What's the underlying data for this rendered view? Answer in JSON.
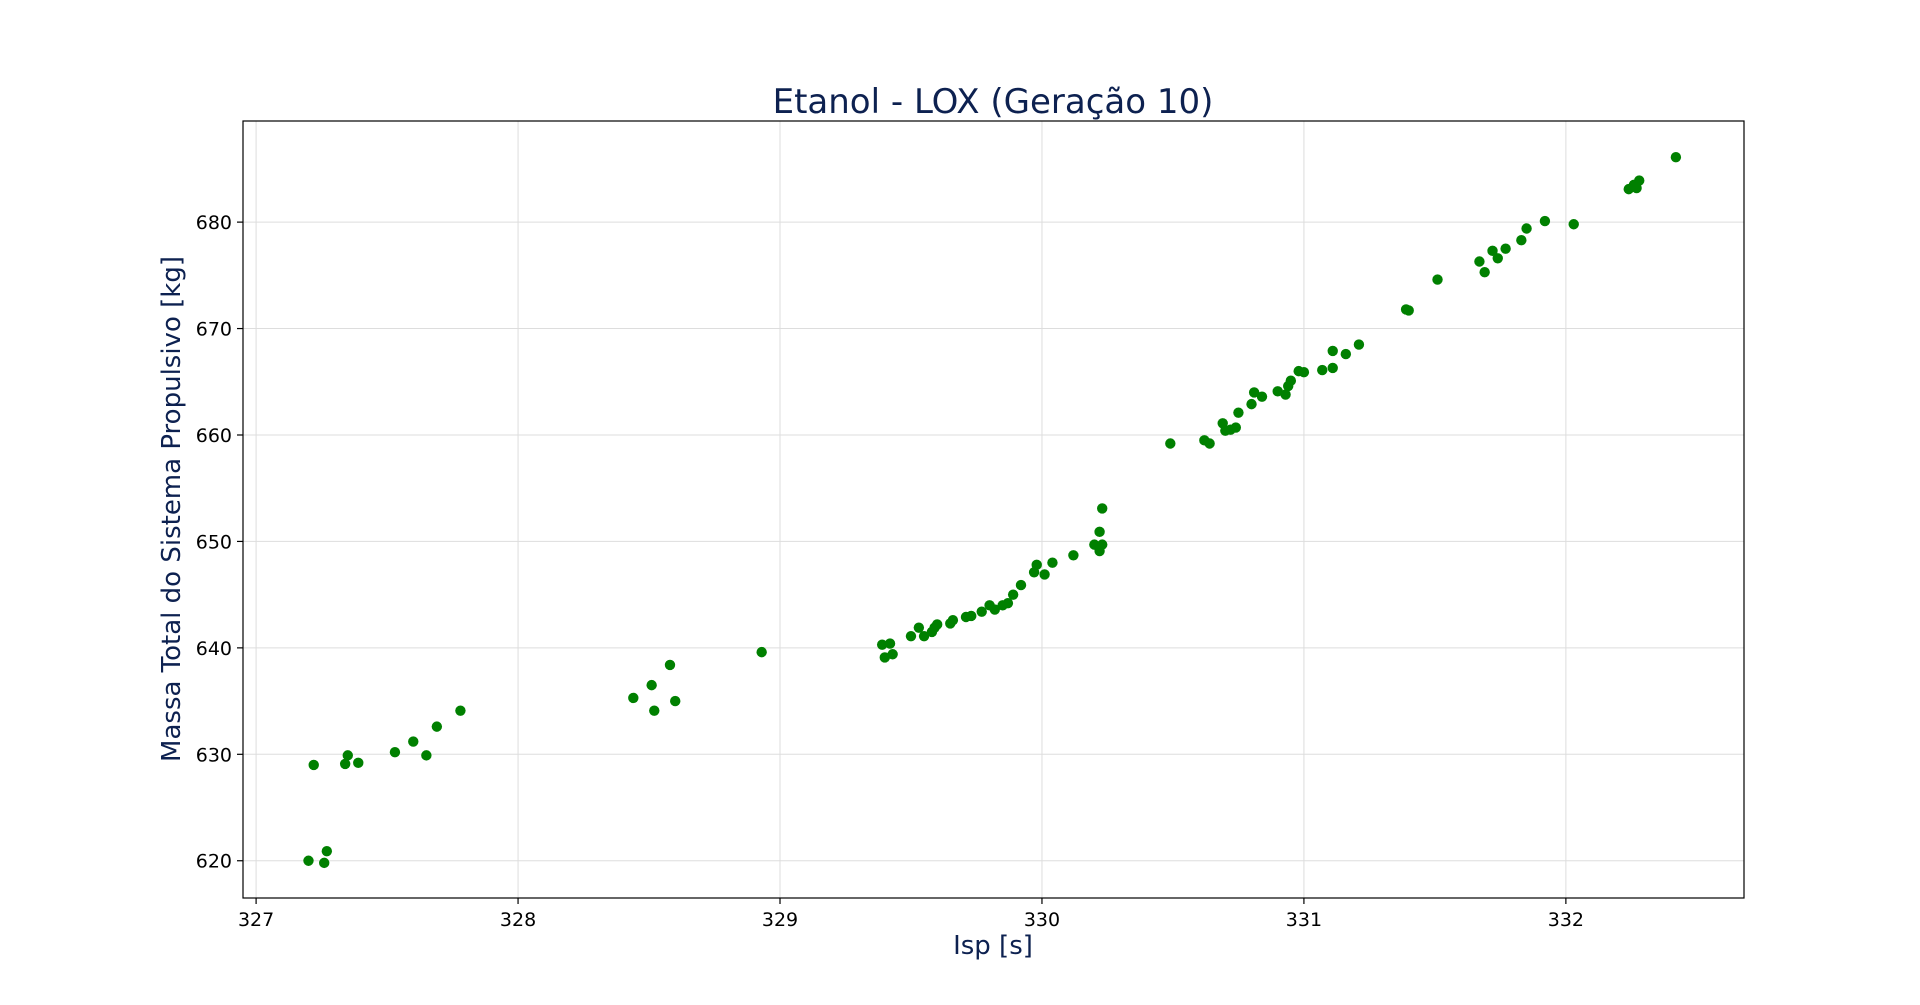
{
  "chart_data": {
    "type": "scatter",
    "title": "Etanol - LOX (Geração 10)",
    "xlabel": "Isp [s]",
    "ylabel": "Massa Total do Sistema Propulsivo [kg]",
    "xlim": [
      326.95,
      332.68
    ],
    "ylim": [
      616.5,
      689.5
    ],
    "xticks": [
      327,
      328,
      329,
      330,
      331,
      332
    ],
    "yticks": [
      620,
      630,
      640,
      650,
      660,
      670,
      680
    ],
    "grid": true,
    "legend": "none",
    "colors": {
      "points": "#008000",
      "title": "#0d2150",
      "axis_label": "#0d2150",
      "grid": "#dddddd",
      "frame": "#000000"
    },
    "series": [
      {
        "points": [
          [
            327.2,
            620.0
          ],
          [
            327.26,
            619.8
          ],
          [
            327.27,
            620.9
          ],
          [
            327.22,
            629.0
          ],
          [
            327.34,
            629.1
          ],
          [
            327.35,
            629.9
          ],
          [
            327.39,
            629.2
          ],
          [
            327.53,
            630.2
          ],
          [
            327.6,
            631.2
          ],
          [
            327.65,
            629.9
          ],
          [
            327.69,
            632.6
          ],
          [
            327.78,
            634.1
          ],
          [
            328.44,
            635.3
          ],
          [
            328.51,
            636.5
          ],
          [
            328.52,
            634.1
          ],
          [
            328.58,
            638.4
          ],
          [
            328.6,
            635.0
          ],
          [
            328.93,
            639.6
          ],
          [
            329.39,
            640.3
          ],
          [
            329.4,
            639.1
          ],
          [
            329.42,
            640.4
          ],
          [
            329.43,
            639.4
          ],
          [
            329.5,
            641.1
          ],
          [
            329.53,
            641.9
          ],
          [
            329.55,
            641.1
          ],
          [
            329.58,
            641.5
          ],
          [
            329.59,
            641.9
          ],
          [
            329.6,
            642.2
          ],
          [
            329.65,
            642.3
          ],
          [
            329.66,
            642.6
          ],
          [
            329.71,
            642.9
          ],
          [
            329.73,
            643.0
          ],
          [
            329.77,
            643.4
          ],
          [
            329.8,
            644.0
          ],
          [
            329.82,
            643.6
          ],
          [
            329.85,
            644.0
          ],
          [
            329.87,
            644.2
          ],
          [
            329.89,
            645.0
          ],
          [
            329.92,
            645.9
          ],
          [
            329.97,
            647.1
          ],
          [
            329.98,
            647.8
          ],
          [
            330.01,
            646.9
          ],
          [
            330.04,
            648.0
          ],
          [
            330.12,
            648.7
          ],
          [
            330.2,
            649.7
          ],
          [
            330.22,
            649.1
          ],
          [
            330.22,
            650.9
          ],
          [
            330.23,
            649.7
          ],
          [
            330.23,
            653.1
          ],
          [
            330.49,
            659.2
          ],
          [
            330.62,
            659.5
          ],
          [
            330.64,
            659.2
          ],
          [
            330.69,
            661.1
          ],
          [
            330.7,
            660.4
          ],
          [
            330.72,
            660.5
          ],
          [
            330.74,
            660.7
          ],
          [
            330.75,
            662.1
          ],
          [
            330.8,
            662.9
          ],
          [
            330.81,
            664.0
          ],
          [
            330.84,
            663.6
          ],
          [
            330.9,
            664.1
          ],
          [
            330.93,
            663.8
          ],
          [
            330.94,
            664.6
          ],
          [
            330.95,
            665.1
          ],
          [
            330.98,
            666.0
          ],
          [
            331.0,
            665.9
          ],
          [
            331.07,
            666.1
          ],
          [
            331.11,
            667.9
          ],
          [
            331.11,
            666.3
          ],
          [
            331.16,
            667.6
          ],
          [
            331.21,
            668.5
          ],
          [
            331.39,
            671.8
          ],
          [
            331.4,
            671.7
          ],
          [
            331.51,
            674.6
          ],
          [
            331.67,
            676.3
          ],
          [
            331.69,
            675.3
          ],
          [
            331.72,
            677.3
          ],
          [
            331.74,
            676.6
          ],
          [
            331.77,
            677.5
          ],
          [
            331.83,
            678.3
          ],
          [
            331.85,
            679.4
          ],
          [
            331.92,
            680.1
          ],
          [
            332.03,
            679.8
          ],
          [
            332.24,
            683.1
          ],
          [
            332.26,
            683.5
          ],
          [
            332.27,
            683.2
          ],
          [
            332.28,
            683.9
          ],
          [
            332.42,
            686.1
          ]
        ]
      }
    ]
  }
}
